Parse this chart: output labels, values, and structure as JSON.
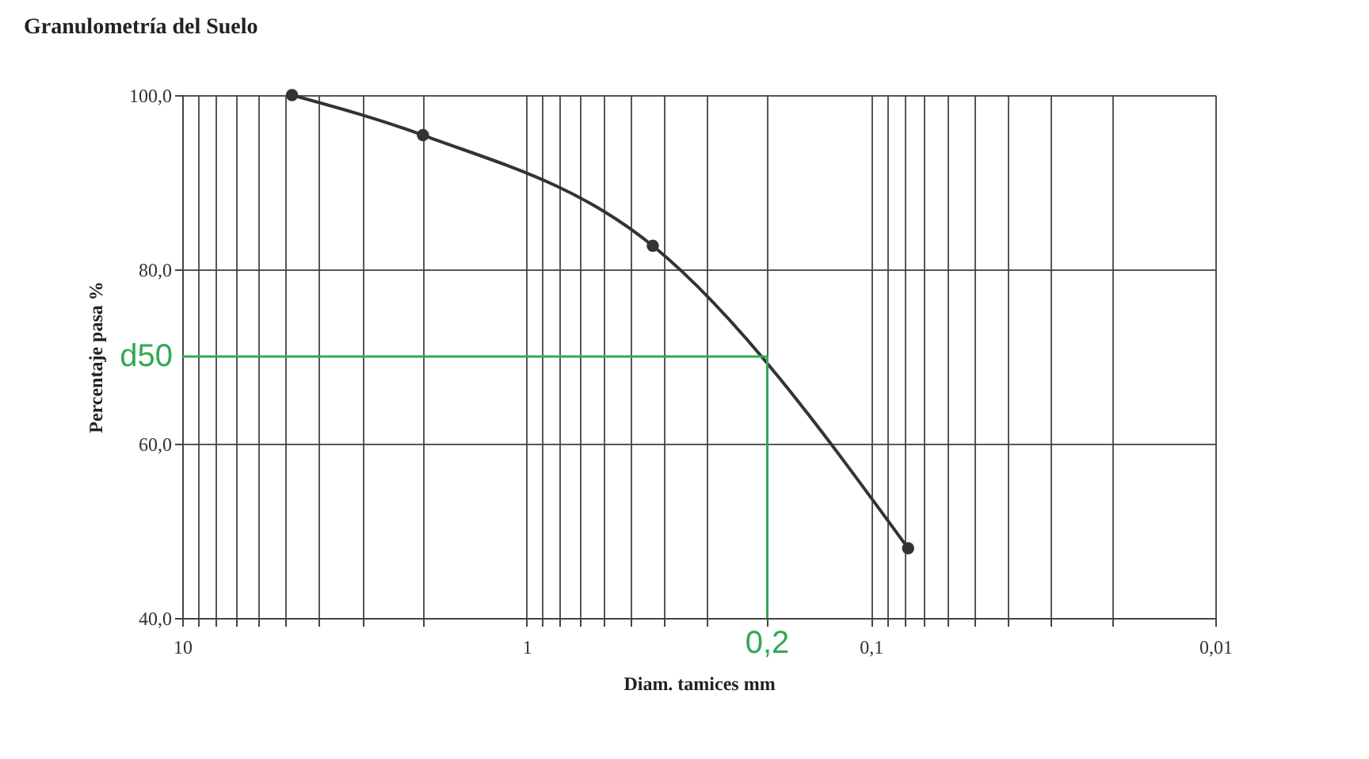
{
  "chart_data": {
    "type": "line",
    "title": "Granulometría  del Suelo",
    "xlabel": "Diam. tamices mm",
    "ylabel": "Percentaje pasa %",
    "log": "x",
    "grid": true,
    "marker": "circle",
    "line_style": "solid",
    "xlim": [
      10,
      0.01
    ],
    "ylim": [
      40,
      100
    ],
    "xticks": [
      {
        "value": 10,
        "label": "10"
      },
      {
        "value": 9,
        "label": null
      },
      {
        "value": 8,
        "label": null
      },
      {
        "value": 7,
        "label": null
      },
      {
        "value": 6,
        "label": null
      },
      {
        "value": 5,
        "label": null
      },
      {
        "value": 4,
        "label": null
      },
      {
        "value": 3,
        "label": null
      },
      {
        "value": 2,
        "label": null
      },
      {
        "value": 1,
        "label": "1"
      },
      {
        "value": 0.9,
        "label": null
      },
      {
        "value": 0.8,
        "label": null
      },
      {
        "value": 0.7,
        "label": null
      },
      {
        "value": 0.6,
        "label": null
      },
      {
        "value": 0.5,
        "label": null
      },
      {
        "value": 0.4,
        "label": null
      },
      {
        "value": 0.3,
        "label": null
      },
      {
        "value": 0.2,
        "label": null
      },
      {
        "value": 0.1,
        "label": "0,1"
      },
      {
        "value": 0.09,
        "label": null
      },
      {
        "value": 0.08,
        "label": null
      },
      {
        "value": 0.07,
        "label": null
      },
      {
        "value": 0.06,
        "label": null
      },
      {
        "value": 0.05,
        "label": null
      },
      {
        "value": 0.04,
        "label": null
      },
      {
        "value": 0.03,
        "label": null
      },
      {
        "value": 0.02,
        "label": null
      },
      {
        "value": 0.01,
        "label": "0,01"
      }
    ],
    "yticks": [
      {
        "value": 40,
        "label": "40,0"
      },
      {
        "value": 60,
        "label": "60,0"
      },
      {
        "value": 80,
        "label": "80,0"
      },
      {
        "value": 100,
        "label": "100,0"
      }
    ],
    "series": [
      {
        "x": [
          4.8,
          2.0,
          0.43,
          0.078
        ],
        "values": [
          100,
          95.4,
          82.7,
          48.0
        ],
        "color": "#333333"
      },
      {
        "type": "line",
        "marker": "none",
        "x": [
          10,
          0.2,
          0.2
        ],
        "values": [
          70,
          70,
          40
        ],
        "color": "#33a852"
      }
    ],
    "annotations": [
      {
        "text": "d50",
        "x": 10,
        "y": 70
      },
      {
        "text": "0,2",
        "x": 0.2,
        "y": 40
      }
    ]
  }
}
